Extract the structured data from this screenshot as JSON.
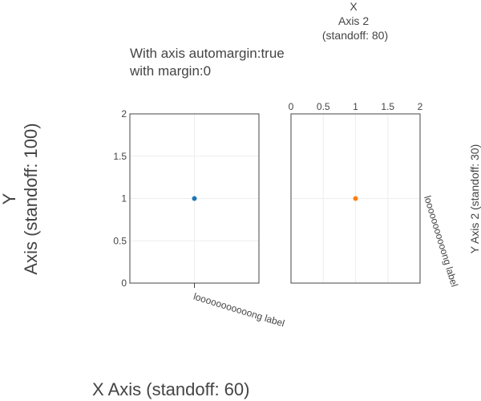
{
  "chart_data": [
    {
      "type": "scatter",
      "title_lines": [
        "With axis automargin:true",
        "with margin:0"
      ],
      "series": [
        {
          "x": [
            1
          ],
          "y": [
            1
          ],
          "color": "#1f77b4"
        }
      ],
      "xaxis": {
        "title_lines": [
          "X Axis (standoff: 60)"
        ],
        "range": [
          0,
          2
        ],
        "tickvals": [
          1
        ],
        "ticktext": [
          "looooooooooong label"
        ],
        "side": "bottom"
      },
      "yaxis": {
        "title_lines": [
          "Y",
          "Axis (standoff: 100)"
        ],
        "range": [
          0,
          2
        ],
        "tickvals": [
          0,
          0.5,
          1,
          1.5,
          2
        ],
        "ticktext": [
          "0",
          "0.5",
          "1",
          "1.5",
          "2"
        ],
        "side": "left"
      },
      "grid": true
    },
    {
      "type": "scatter",
      "series": [
        {
          "x": [
            1
          ],
          "y": [
            1
          ],
          "color": "#ff7f0e"
        }
      ],
      "xaxis": {
        "title_lines": [
          "X",
          "Axis 2",
          "(standoff: 80)"
        ],
        "range": [
          0,
          2
        ],
        "tickvals": [
          0,
          0.5,
          1,
          1.5,
          2
        ],
        "ticktext": [
          "0",
          "0.5",
          "1",
          "1.5",
          "2"
        ],
        "side": "top"
      },
      "yaxis": {
        "title_lines": [
          "Y Axis 2 (standoff: 30)"
        ],
        "range": [
          0,
          2
        ],
        "tickvals": [
          1
        ],
        "ticktext": [
          "looooooooooong label"
        ],
        "side": "right"
      },
      "grid": true
    }
  ]
}
